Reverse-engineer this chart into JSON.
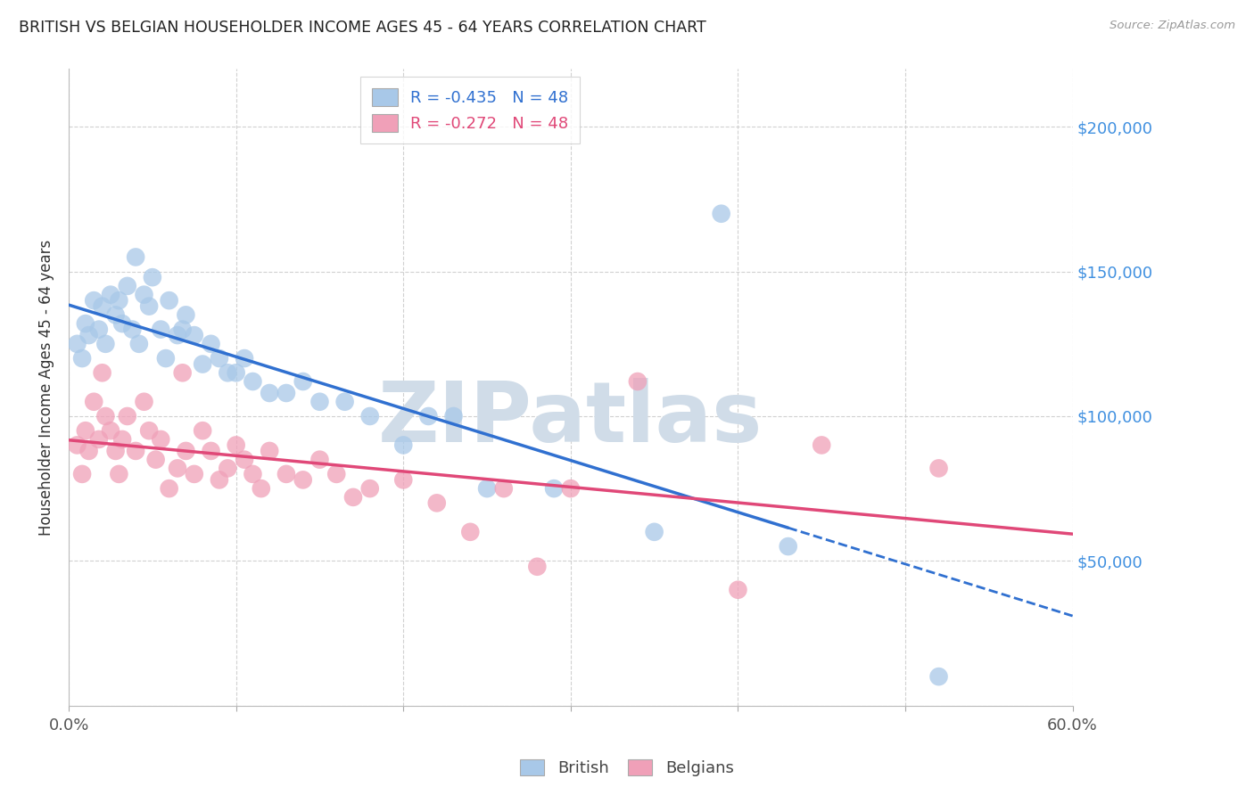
{
  "title": "BRITISH VS BELGIAN HOUSEHOLDER INCOME AGES 45 - 64 YEARS CORRELATION CHART",
  "source": "Source: ZipAtlas.com",
  "ylabel": "Householder Income Ages 45 - 64 years",
  "xlim": [
    0.0,
    0.6
  ],
  "ylim": [
    0,
    220000
  ],
  "yticks": [
    0,
    50000,
    100000,
    150000,
    200000
  ],
  "ytick_labels": [
    "",
    "$50,000",
    "$100,000",
    "$150,000",
    "$200,000"
  ],
  "xticks": [
    0.0,
    0.1,
    0.2,
    0.3,
    0.4,
    0.5,
    0.6
  ],
  "xtick_labels": [
    "0.0%",
    "",
    "",
    "",
    "",
    "",
    "60.0%"
  ],
  "british_R": -0.435,
  "british_N": 48,
  "belgian_R": -0.272,
  "belgian_N": 48,
  "legend_label_british": "British",
  "legend_label_belgian": "Belgians",
  "bg_color": "#ffffff",
  "scatter_color_british": "#a8c8e8",
  "scatter_color_belgian": "#f0a0b8",
  "line_color_british": "#3070d0",
  "line_color_belgian": "#e04878",
  "title_color": "#222222",
  "axis_label_color": "#333333",
  "tick_color_y_right": "#4090e0",
  "grid_color": "#cccccc",
  "watermark_color": "#d0dce8",
  "british_x": [
    0.005,
    0.008,
    0.01,
    0.012,
    0.015,
    0.018,
    0.02,
    0.022,
    0.025,
    0.028,
    0.03,
    0.032,
    0.035,
    0.038,
    0.04,
    0.042,
    0.045,
    0.048,
    0.05,
    0.055,
    0.058,
    0.06,
    0.065,
    0.068,
    0.07,
    0.075,
    0.08,
    0.085,
    0.09,
    0.095,
    0.1,
    0.105,
    0.11,
    0.12,
    0.13,
    0.14,
    0.15,
    0.165,
    0.18,
    0.2,
    0.215,
    0.23,
    0.25,
    0.29,
    0.35,
    0.39,
    0.43,
    0.52
  ],
  "british_y": [
    125000,
    120000,
    132000,
    128000,
    140000,
    130000,
    138000,
    125000,
    142000,
    135000,
    140000,
    132000,
    145000,
    130000,
    155000,
    125000,
    142000,
    138000,
    148000,
    130000,
    120000,
    140000,
    128000,
    130000,
    135000,
    128000,
    118000,
    125000,
    120000,
    115000,
    115000,
    120000,
    112000,
    108000,
    108000,
    112000,
    105000,
    105000,
    100000,
    90000,
    100000,
    100000,
    75000,
    75000,
    60000,
    170000,
    55000,
    10000
  ],
  "belgian_x": [
    0.005,
    0.008,
    0.01,
    0.012,
    0.015,
    0.018,
    0.02,
    0.022,
    0.025,
    0.028,
    0.03,
    0.032,
    0.035,
    0.04,
    0.045,
    0.048,
    0.052,
    0.055,
    0.06,
    0.065,
    0.068,
    0.07,
    0.075,
    0.08,
    0.085,
    0.09,
    0.095,
    0.1,
    0.105,
    0.11,
    0.115,
    0.12,
    0.13,
    0.14,
    0.15,
    0.16,
    0.17,
    0.18,
    0.2,
    0.22,
    0.24,
    0.26,
    0.28,
    0.3,
    0.34,
    0.4,
    0.45,
    0.52
  ],
  "belgian_y": [
    90000,
    80000,
    95000,
    88000,
    105000,
    92000,
    115000,
    100000,
    95000,
    88000,
    80000,
    92000,
    100000,
    88000,
    105000,
    95000,
    85000,
    92000,
    75000,
    82000,
    115000,
    88000,
    80000,
    95000,
    88000,
    78000,
    82000,
    90000,
    85000,
    80000,
    75000,
    88000,
    80000,
    78000,
    85000,
    80000,
    72000,
    75000,
    78000,
    70000,
    60000,
    75000,
    48000,
    75000,
    112000,
    40000,
    90000,
    82000
  ]
}
